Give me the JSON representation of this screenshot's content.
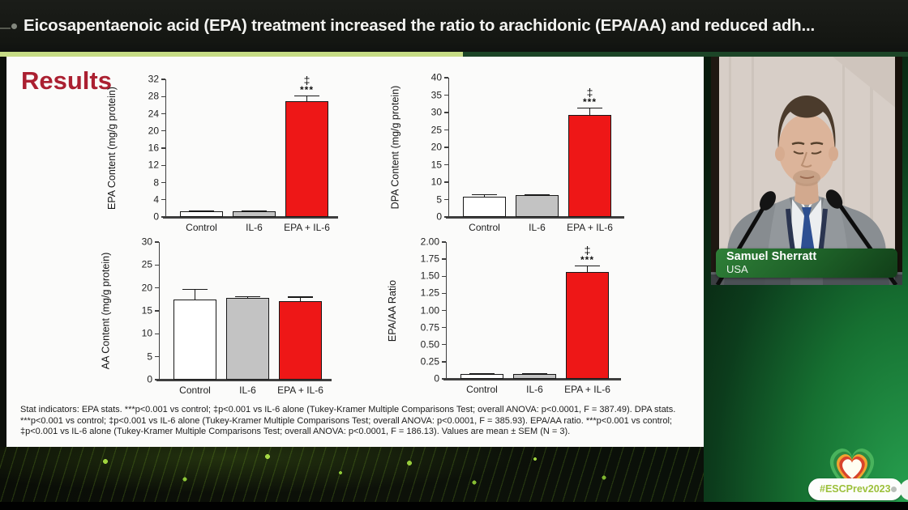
{
  "header": {
    "title": "Eicosapentaenoic acid (EPA) treatment increased the ratio to arachidonic (EPA/AA) and reduced adh..."
  },
  "slide": {
    "heading": "Results",
    "stats_note": "Stat indicators: EPA stats. ***p<0.001 vs control; ‡p<0.001 vs IL-6 alone (Tukey-Kramer Multiple Comparisons Test; overall ANOVA: p<0.0001, F = 387.49). DPA stats.\n***p<0.001 vs control; ‡p<0.001 vs IL-6 alone (Tukey-Kramer Multiple Comparisons Test; overall ANOVA: p<0.0001, F = 385.93). EPA/AA ratio. ***p<0.001 vs control;\n‡p<0.001 vs IL-6 alone (Tukey-Kramer Multiple Comparisons Test; overall ANOVA: p<0.0001, F = 186.13). Values are mean ± SEM (N = 3)."
  },
  "chart_data": [
    {
      "type": "bar",
      "name": "epa-content",
      "ylabel": "EPA Content (mg/g protein)",
      "ylim": [
        0,
        32
      ],
      "ytick_values": [
        0,
        4,
        8,
        12,
        16,
        20,
        24,
        28,
        32
      ],
      "ytick_labels": [
        "0",
        "4",
        "8",
        "12",
        "16",
        "20",
        "24",
        "28",
        "32"
      ],
      "categories": [
        "Control",
        "IL-6",
        "EPA + IL-6"
      ],
      "values": [
        1.3,
        1.4,
        26.9
      ],
      "errors": [
        0.25,
        0.2,
        1.4
      ],
      "bar_fills": [
        "#ffffff",
        "#c3c3c3",
        "#ee1717"
      ],
      "sig": [
        null,
        null,
        {
          "dagger": "‡",
          "stars": "***"
        }
      ],
      "grid": false,
      "legend": "none"
    },
    {
      "type": "bar",
      "name": "dpa-content",
      "ylabel": "DPA Content (mg/g protein)",
      "ylim": [
        0,
        40
      ],
      "ytick_values": [
        0,
        5,
        10,
        15,
        20,
        25,
        30,
        35,
        40
      ],
      "ytick_labels": [
        "0",
        "5",
        "10",
        "15",
        "20",
        "25",
        "30",
        "35",
        "40"
      ],
      "categories": [
        "Control",
        "IL-6",
        "EPA + IL-6"
      ],
      "values": [
        5.8,
        6.2,
        29.4
      ],
      "errors": [
        0.7,
        0.35,
        2.0
      ],
      "bar_fills": [
        "#ffffff",
        "#c3c3c3",
        "#ee1717"
      ],
      "sig": [
        null,
        null,
        {
          "dagger": "‡",
          "stars": "***"
        }
      ],
      "grid": false,
      "legend": "none"
    },
    {
      "type": "bar",
      "name": "aa-content",
      "ylabel": "AA Content (mg/g protein)",
      "ylim": [
        0,
        30
      ],
      "ytick_values": [
        0,
        5,
        10,
        15,
        20,
        25,
        30
      ],
      "ytick_labels": [
        "0",
        "5",
        "10",
        "15",
        "20",
        "25",
        "30"
      ],
      "categories": [
        "Control",
        "IL-6",
        "EPA + IL-6"
      ],
      "values": [
        17.5,
        17.8,
        17.1
      ],
      "errors": [
        2.3,
        0.4,
        1.0
      ],
      "bar_fills": [
        "#ffffff",
        "#c3c3c3",
        "#ee1717"
      ],
      "sig": [
        null,
        null,
        null
      ],
      "grid": false,
      "legend": "none"
    },
    {
      "type": "bar",
      "name": "epa-aa-ratio",
      "ylabel": "EPA/AA Ratio",
      "ylim": [
        0,
        2.0
      ],
      "ytick_values": [
        0,
        0.25,
        0.5,
        0.75,
        1.0,
        1.25,
        1.5,
        1.75,
        2.0
      ],
      "ytick_labels": [
        "0",
        "0.25",
        "0.50",
        "0.75",
        "1.00",
        "1.25",
        "1.50",
        "1.75",
        "2.00"
      ],
      "categories": [
        "Control",
        "IL-6",
        "EPA + IL-6"
      ],
      "values": [
        0.07,
        0.07,
        1.56
      ],
      "errors": [
        0.012,
        0.012,
        0.1
      ],
      "bar_fills": [
        "#ffffff",
        "#c3c3c3",
        "#ee1717"
      ],
      "sig": [
        null,
        null,
        {
          "dagger": "‡",
          "stars": "***"
        }
      ],
      "grid": false,
      "legend": "none"
    }
  ],
  "speaker": {
    "name": "Samuel Sherratt",
    "country": "USA"
  },
  "footer": {
    "hashtag": "#ESCPrev2023"
  },
  "colors": {
    "bar_control": "#ffffff",
    "bar_il6": "#c3c3c3",
    "bar_epa_il6": "#ee1717",
    "heading_red": "#ab2031",
    "accent_strip_light": "#c6db85",
    "esc_green": "#1d8a42",
    "hashtag_text": "#9cc03a"
  }
}
